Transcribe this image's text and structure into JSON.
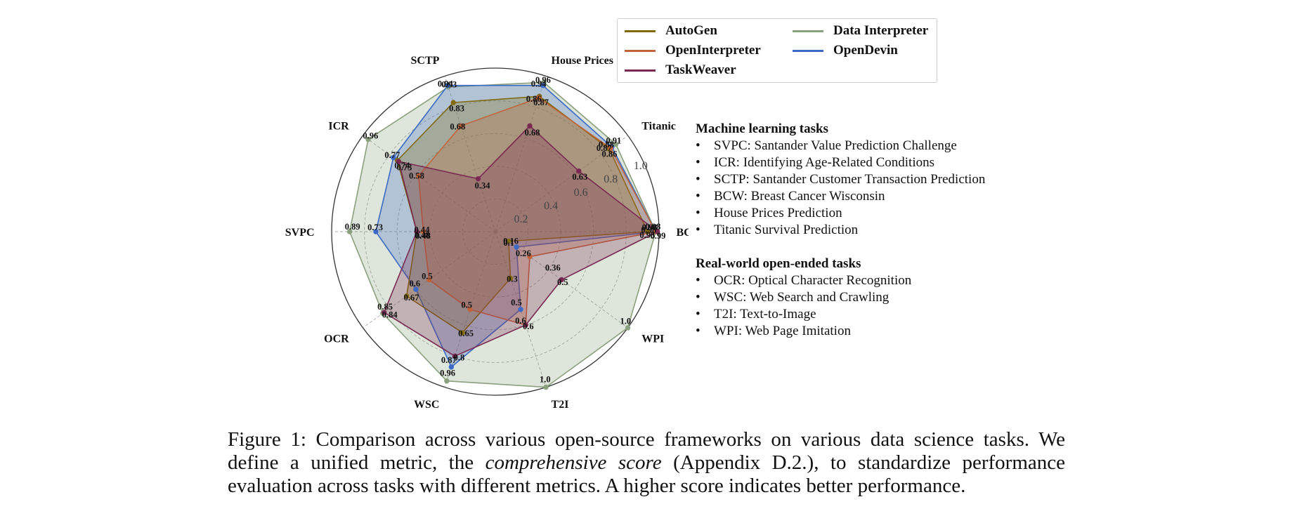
{
  "chart_data": {
    "type": "radar",
    "axes": [
      "BCW",
      "Titanic",
      "House Prices",
      "SCTP",
      "ICR",
      "SVPC",
      "OCR",
      "WSC",
      "T2I",
      "WPI"
    ],
    "radial_ticks": [
      0.2,
      0.4,
      0.6,
      0.8,
      1.0
    ],
    "radial_range": [
      0,
      1.0
    ],
    "series": [
      {
        "name": "Data Interpreter",
        "color": "#8aa07e",
        "values": [
          0.98,
          0.91,
          0.96,
          0.93,
          0.96,
          0.89,
          0.85,
          0.96,
          1.0,
          1.0
        ],
        "labels": [
          "0.98",
          "0.91",
          "0.96",
          "0.93",
          "0.96",
          "0.89",
          "0.85",
          "0.96",
          "1.0",
          "1.0"
        ]
      },
      {
        "name": "AutoGen",
        "color": "#806a0c",
        "values": [
          0.93,
          0.86,
          0.87,
          0.83,
          0.74,
          0.48,
          0.67,
          0.65,
          0.3,
          0.1
        ],
        "labels": [
          "0.93",
          "0.86",
          "0.87",
          "0.83",
          "0.74",
          "0.48",
          "0.67",
          "0.65",
          "0.3",
          "0.1"
        ]
      },
      {
        "name": "OpenInterpreter",
        "color": "#c2643a",
        "values": [
          0.98,
          0.87,
          0.86,
          0.68,
          0.58,
          0.44,
          0.5,
          0.5,
          0.6,
          0.26
        ],
        "labels": [
          "0.98",
          "0.87",
          "0.86",
          "0.68",
          "0.58",
          "0.44",
          "0.5",
          "0.5",
          "0.6",
          "0.26"
        ]
      },
      {
        "name": "TaskWeaver",
        "color": "#7a2a52",
        "values": [
          0.99,
          0.63,
          0.68,
          0.34,
          0.73,
          0.48,
          0.84,
          0.8,
          0.6,
          0.5
        ],
        "labels": [
          "0.99",
          "0.63",
          "0.68",
          "0.34",
          "0.73",
          "0.48",
          "0.84",
          "0.8",
          "0.6",
          "0.5"
        ]
      },
      {
        "name": "OpenDevin",
        "color": "#3c6ac4",
        "values": [
          0.98,
          0.88,
          0.94,
          0.94,
          0.77,
          0.73,
          0.6,
          0.87,
          0.5,
          0.16
        ],
        "labels": [
          "0.98",
          "0.88",
          "0.94",
          "0.94",
          "0.77",
          "0.73",
          "0.6",
          "0.87",
          "0.5",
          "0.16"
        ]
      }
    ],
    "extra_label": {
      "text": "0.36"
    },
    "grid": true
  },
  "legend": {
    "items": [
      {
        "name": "AutoGen",
        "color": "#806a0c"
      },
      {
        "name": "Data Interpreter",
        "color": "#8aa07e"
      },
      {
        "name": "OpenInterpreter",
        "color": "#c2643a"
      },
      {
        "name": "OpenDevin",
        "color": "#3c6ac4"
      },
      {
        "name": "TaskWeaver",
        "color": "#7a2a52"
      }
    ]
  },
  "notes": {
    "ml_title": "Machine learning tasks",
    "ml_items": [
      "SVPC: Santander Value Prediction Challenge",
      "ICR: Identifying Age-Related Conditions",
      "SCTP: Santander Customer Transaction Prediction",
      "BCW: Breast Cancer Wisconsin",
      "House Prices Prediction",
      "Titanic Survival Prediction"
    ],
    "rw_title": "Real-world open-ended tasks",
    "rw_items": [
      "OCR: Optical Character Recognition",
      "WSC: Web Search and Crawling",
      "T2I: Text-to-Image",
      "WPI: Web Page Imitation"
    ],
    "bullet": "•"
  },
  "caption": {
    "part1": "Figure 1: Comparison across various open-source frameworks on various data science tasks. We define a unified metric, the ",
    "emph": "comprehensive score",
    "part2": " (Appendix D.2.), to standardize performance evaluation across tasks with different metrics. A higher score indicates better performance."
  }
}
